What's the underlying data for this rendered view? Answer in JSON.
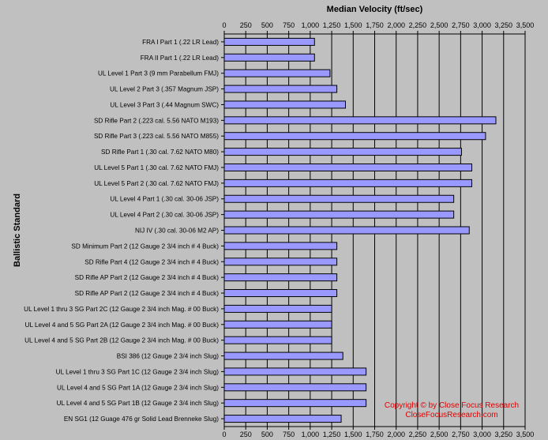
{
  "chart_data": {
    "type": "bar",
    "orientation": "horizontal",
    "xlabel": "Median Velocity (ft/sec)",
    "ylabel": "Ballistic Standard",
    "xlim": [
      0,
      3500
    ],
    "x_ticks": [
      "0",
      "250",
      "500",
      "750",
      "1,000",
      "1,250",
      "1,500",
      "1,750",
      "2,000",
      "2,250",
      "2,500",
      "2,750",
      "3,000",
      "3,250",
      "3,500"
    ],
    "x_tick_values": [
      0,
      250,
      500,
      750,
      1000,
      1250,
      1500,
      1750,
      2000,
      2250,
      2500,
      2750,
      3000,
      3250,
      3500
    ],
    "grid": "vertical major gridlines",
    "bar_color": "#9999ff",
    "categories": [
      "FRA I Part 1 (.22 LR Lead)",
      "FRA II Part 1 (.22 LR Lead)",
      "UL Level 1 Part 3 (9 mm Parabellum FMJ)",
      "UL Level 2 Part 3 (.357 Magnum JSP)",
      "UL Level 3 Part 3 (.44 Magnum SWC)",
      "SD Rifle Part 2 (.223 cal. 5.56 NATO M193)",
      "SD Rifle Part 3 (.223 cal. 5.56 NATO M855)",
      "SD Rifle Part 1 (.30 cal. 7.62 NATO M80)",
      "UL Level 5 Part 1 (.30 cal. 7.62 NATO FMJ)",
      "UL Level 5 Part 2 (.30 cal. 7.62 NATO FMJ)",
      "UL Level 4 Part 1 (.30 cal. 30-06 JSP)",
      "UL Level 4 Part 2 (.30 cal. 30-06 JSP)",
      "NIJ IV (.30 cal. 30-06 M2 AP)",
      "SD Minimum Part 2 (12 Gauge 2 3/4 inch # 4 Buck)",
      "SD Rifle Part 4 (12 Gauge 2 3/4 inch # 4 Buck)",
      "SD Rifle AP Part 2 (12 Gauge 2 3/4 inch # 4 Buck)",
      "SD Rifle AP Part 2 (12 Gauge 2 3/4 inch # 4 Buck)",
      "UL Level 1 thru 3 SG Part 2C (12 Gauge 2 3/4 inch Mag. # 00 Buck)",
      "UL Level 4 and 5 SG Part 2A (12 Gauge 2 3/4 inch Mag. # 00 Buck)",
      "UL Level 4 and 5 SG Part 2B (12 Gauge 2 3/4 inch Mag. # 00 Buck)",
      "BSI 386 (12 Gauge 2 3/4 inch Slug)",
      "UL Level 1 thru 3 SG Part 1C (12 Gauge 2 3/4 inch Slug)",
      "UL Level 4 and 5 SG Part 1A (12 Gauge 2 3/4 inch Slug)",
      "UL Level 4 and 5 SG Part 1B (12 Gauge 2 3/4 inch Slug)",
      "EN SG1 (12 Guage 476 gr Solid Lead Brenneke Slug)"
    ],
    "values": [
      1050,
      1050,
      1230,
      1310,
      1410,
      3160,
      3040,
      2760,
      2880,
      2880,
      2670,
      2670,
      2850,
      1310,
      1310,
      1310,
      1310,
      1250,
      1250,
      1250,
      1380,
      1650,
      1650,
      1650,
      1360
    ]
  },
  "annotations": {
    "copyright_line1": "Copyright © by Close Focus Research",
    "copyright_line2": "CloseFocusResearch.com",
    "color": "#e00000"
  }
}
